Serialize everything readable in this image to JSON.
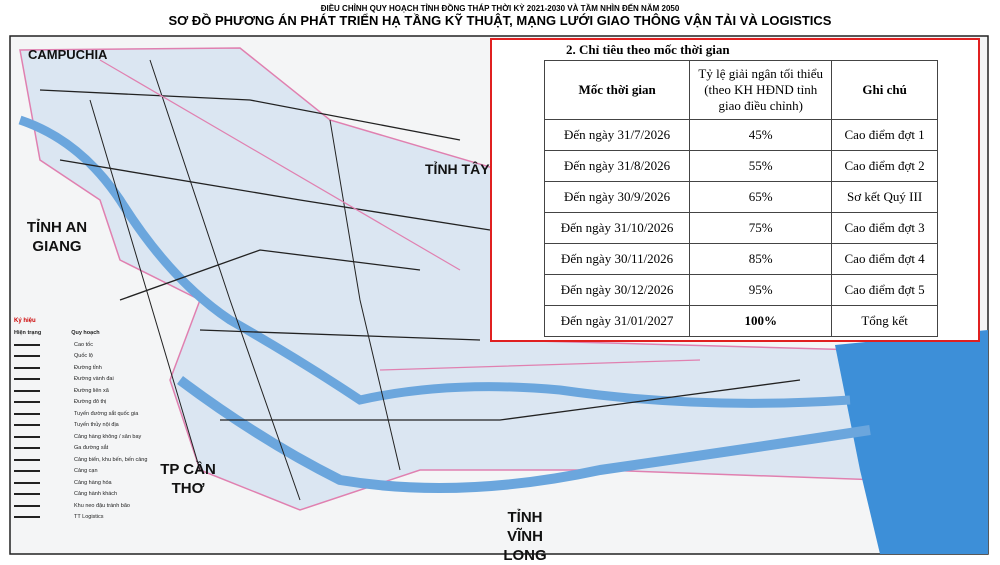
{
  "header": {
    "subtitle": "ĐIỀU CHỈNH QUY HOẠCH TỈNH ĐỒNG THÁP THỜI KỲ 2021-2030 VÀ TẦM NHÌN ĐẾN NĂM 2050",
    "title": "SƠ ĐỒ PHƯƠNG ÁN PHÁT TRIỂN HẠ TẦNG KỸ THUẬT, MẠNG LƯỚI GIAO THÔNG VẬN TẢI VÀ LOGISTICS"
  },
  "map_labels": {
    "cambodia": "CAMPUCHIA",
    "an_giang": "TỈNH AN GIANG",
    "tay_ninh": "TỈNH TÂY NINH",
    "can_tho": "TP CẦN THƠ",
    "vinh_long": "TỈNH VĨNH LONG"
  },
  "legend": {
    "title": "Ký hiệu",
    "current": "Hiện trạng",
    "planned": "Quy hoạch",
    "items": [
      "Cao tốc",
      "Quốc lộ",
      "Đường tỉnh",
      "Đường vành đai",
      "Đường liên xã",
      "Đường đô thị",
      "Tuyến đường sắt quốc gia",
      "Tuyến thủy nội địa",
      "Cảng hàng không / sân bay",
      "Ga đường sắt",
      "Cảng biển, khu bến, bến cảng",
      "Cảng cạn",
      "Cảng hàng hóa",
      "Cảng hành khách",
      "Khu neo đậu tránh bão",
      "TT Logistics"
    ]
  },
  "table": {
    "heading": "2. Chỉ tiêu theo mốc thời gian",
    "columns": [
      "Mốc thời gian",
      "Tỷ lệ giải ngân tối thiểu (theo KH HĐND tỉnh giao điều chỉnh)",
      "Ghi chú"
    ],
    "rows": [
      [
        "Đến ngày 31/7/2026",
        "45%",
        "Cao điểm đợt 1"
      ],
      [
        "Đến ngày 31/8/2026",
        "55%",
        "Cao điểm đợt 2"
      ],
      [
        "Đến ngày 30/9/2026",
        "65%",
        "Sơ kết Quý III"
      ],
      [
        "Đến ngày 31/10/2026",
        "75%",
        "Cao điểm đợt 3"
      ],
      [
        "Đến ngày 30/11/2026",
        "85%",
        "Cao điểm đợt 4"
      ],
      [
        "Đến ngày 30/12/2026",
        "95%",
        "Cao điểm đợt 5"
      ],
      [
        "Đến ngày 31/01/2027",
        "100%",
        "Tổng kết"
      ]
    ]
  }
}
